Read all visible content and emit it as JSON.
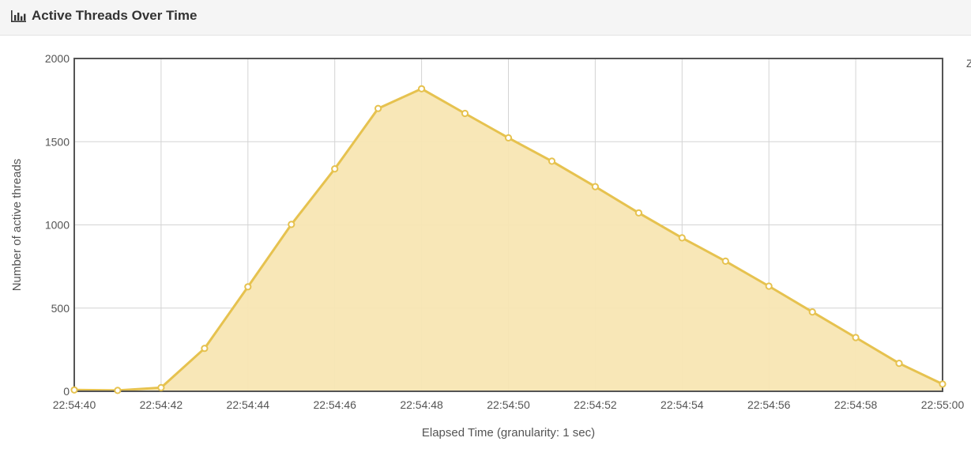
{
  "header": {
    "title": "Active Threads Over Time",
    "icon": "bar-chart-icon"
  },
  "chart_data": {
    "type": "area",
    "xlabel": "Elapsed Time (granularity: 1 sec)",
    "ylabel": "Number of active threads",
    "x_tick_labels": [
      "22:54:40",
      "22:54:42",
      "22:54:44",
      "22:54:46",
      "22:54:48",
      "22:54:50",
      "22:54:52",
      "22:54:54",
      "22:54:56",
      "22:54:58",
      "22:55:00"
    ],
    "y_tick_labels": [
      "0",
      "500",
      "1000",
      "1500",
      "2000"
    ],
    "ylim": [
      0,
      2000
    ],
    "xlim": [
      "22:54:40",
      "22:55:00"
    ],
    "grid": true,
    "legend_text": "Z",
    "series": [
      {
        "color": "#e6c24f",
        "fill_color": "#f8e6b3",
        "points": [
          {
            "x": "22:54:40",
            "y": 8
          },
          {
            "x": "22:54:41",
            "y": 5
          },
          {
            "x": "22:54:42",
            "y": 22
          },
          {
            "x": "22:54:43",
            "y": 258
          },
          {
            "x": "22:54:44",
            "y": 628
          },
          {
            "x": "22:54:45",
            "y": 1003
          },
          {
            "x": "22:54:46",
            "y": 1337
          },
          {
            "x": "22:54:47",
            "y": 1700
          },
          {
            "x": "22:54:48",
            "y": 1818
          },
          {
            "x": "22:54:49",
            "y": 1670
          },
          {
            "x": "22:54:50",
            "y": 1523
          },
          {
            "x": "22:54:51",
            "y": 1383
          },
          {
            "x": "22:54:52",
            "y": 1230
          },
          {
            "x": "22:54:53",
            "y": 1072
          },
          {
            "x": "22:54:54",
            "y": 922
          },
          {
            "x": "22:54:55",
            "y": 782
          },
          {
            "x": "22:54:56",
            "y": 632
          },
          {
            "x": "22:54:57",
            "y": 477
          },
          {
            "x": "22:54:58",
            "y": 323
          },
          {
            "x": "22:54:59",
            "y": 168
          },
          {
            "x": "22:55:00",
            "y": 43
          }
        ]
      }
    ]
  }
}
